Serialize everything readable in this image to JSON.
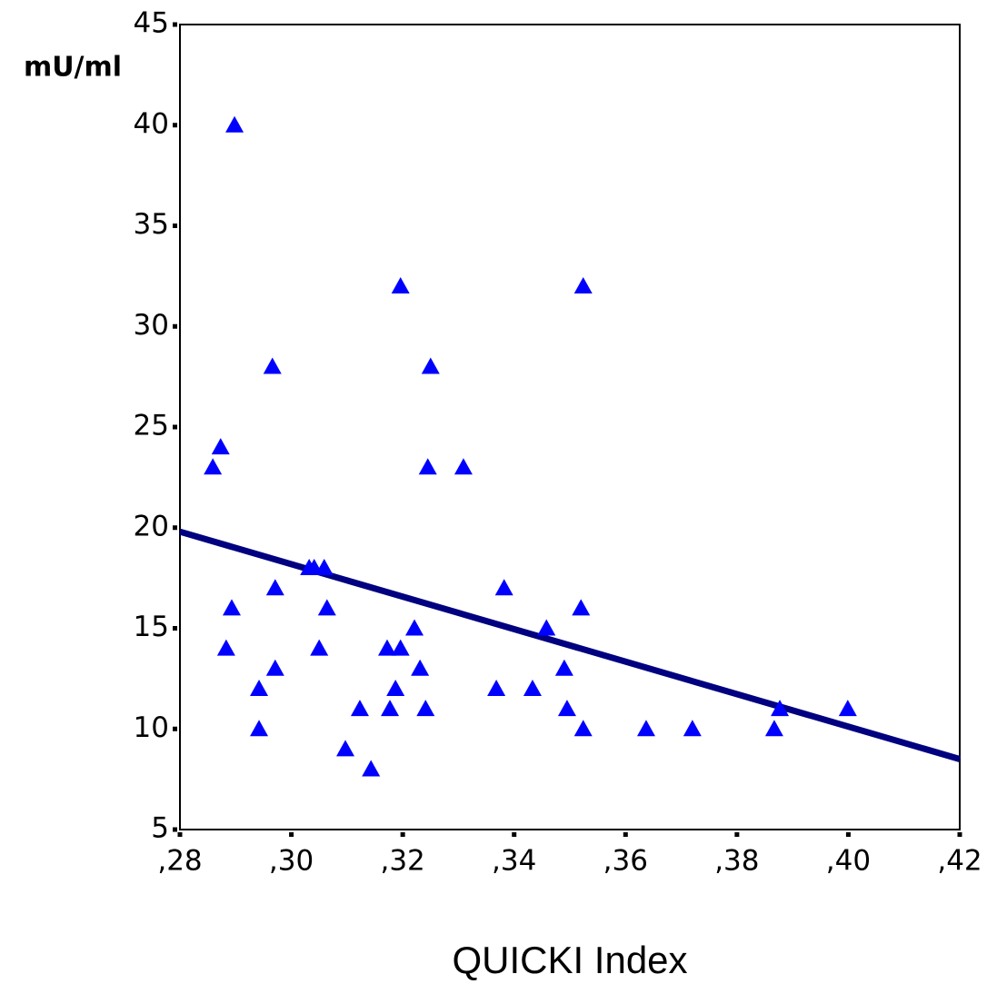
{
  "chart_data": {
    "type": "scatter",
    "y_label": "mU/ml",
    "x_label": "QUICKI Index",
    "xlim": [
      0.28,
      0.42
    ],
    "xticks": [
      {
        "value": 0.28,
        "label": ",28"
      },
      {
        "value": 0.3,
        "label": ",30"
      },
      {
        "value": 0.32,
        "label": ",32"
      },
      {
        "value": 0.34,
        "label": ",34"
      },
      {
        "value": 0.36,
        "label": ",36"
      },
      {
        "value": 0.38,
        "label": ",38"
      },
      {
        "value": 0.4,
        "label": ",40"
      },
      {
        "value": 0.42,
        "label": ",42"
      }
    ],
    "ylim": [
      5,
      45
    ],
    "yticks": [
      5,
      10,
      15,
      20,
      25,
      30,
      35,
      40,
      45
    ],
    "marker": "triangle",
    "color": "#0000ff",
    "x": [
      0.2859,
      0.2873,
      0.2898,
      0.2883,
      0.2893,
      0.2942,
      0.2942,
      0.2966,
      0.2971,
      0.2971,
      0.3032,
      0.3041,
      0.3059,
      0.305,
      0.3064,
      0.3097,
      0.3123,
      0.3143,
      0.3172,
      0.3177,
      0.3187,
      0.3196,
      0.3196,
      0.3221,
      0.3231,
      0.3241,
      0.3245,
      0.325,
      0.3309,
      0.3368,
      0.3382,
      0.3433,
      0.3458,
      0.349,
      0.3495,
      0.352,
      0.3524,
      0.3524,
      0.3637,
      0.372,
      0.3867,
      0.3877,
      0.3999
    ],
    "values": [
      23,
      24,
      40,
      14,
      16,
      12,
      10,
      28,
      17,
      13,
      18,
      18,
      18,
      14,
      16,
      9,
      11,
      8,
      14,
      11,
      12,
      14,
      32,
      15,
      13,
      11,
      23,
      28,
      23,
      12,
      17,
      12,
      15,
      13,
      11,
      16,
      32,
      10,
      10,
      10,
      10,
      11,
      11
    ],
    "trendline": {
      "color": "#000080",
      "x": [
        0.28,
        0.42
      ],
      "values": [
        19.8,
        8.5
      ]
    }
  }
}
